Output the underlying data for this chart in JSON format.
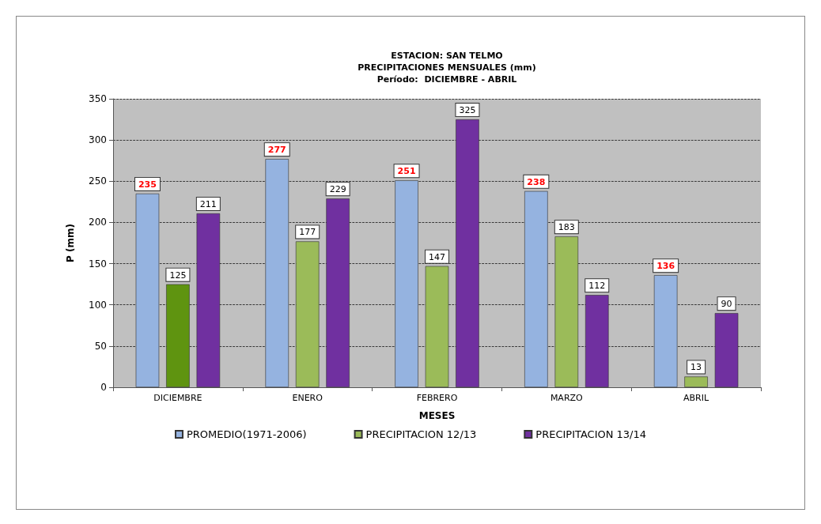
{
  "chart_data": {
    "type": "bar",
    "title": "ESTACION: SAN TELMO",
    "subtitle": "PRECIPITACIONES MENSUALES (mm)\nPeríodo:  DICIEMBRE - ABRIL",
    "xlabel": "MESES",
    "ylabel": "P (mm)",
    "categories": [
      "DICIEMBRE",
      "ENERO",
      "FEBRERO",
      "MARZO",
      "ABRIL"
    ],
    "series": [
      {
        "name": "PROMEDIO(1971-2006)",
        "color": "#95b3e0",
        "values": [
          235,
          277,
          251,
          238,
          136
        ]
      },
      {
        "name": "PRECIPITACION 12/13",
        "color": "#9bbb59",
        "colors": [
          "#5f9410",
          "#9bbb59",
          "#9bbb59",
          "#9bbb59",
          "#9bbb59"
        ],
        "values": [
          125,
          177,
          147,
          183,
          13
        ]
      },
      {
        "name": "PRECIPITACION 13/14",
        "color": "#7030a0",
        "values": [
          211,
          229,
          325,
          112,
          90
        ]
      }
    ],
    "ylim": [
      0,
      350
    ],
    "yticks": [
      0,
      50,
      100,
      150,
      200,
      250,
      300,
      350
    ],
    "grid": "y",
    "legend": "bottom",
    "data_labels": true
  }
}
